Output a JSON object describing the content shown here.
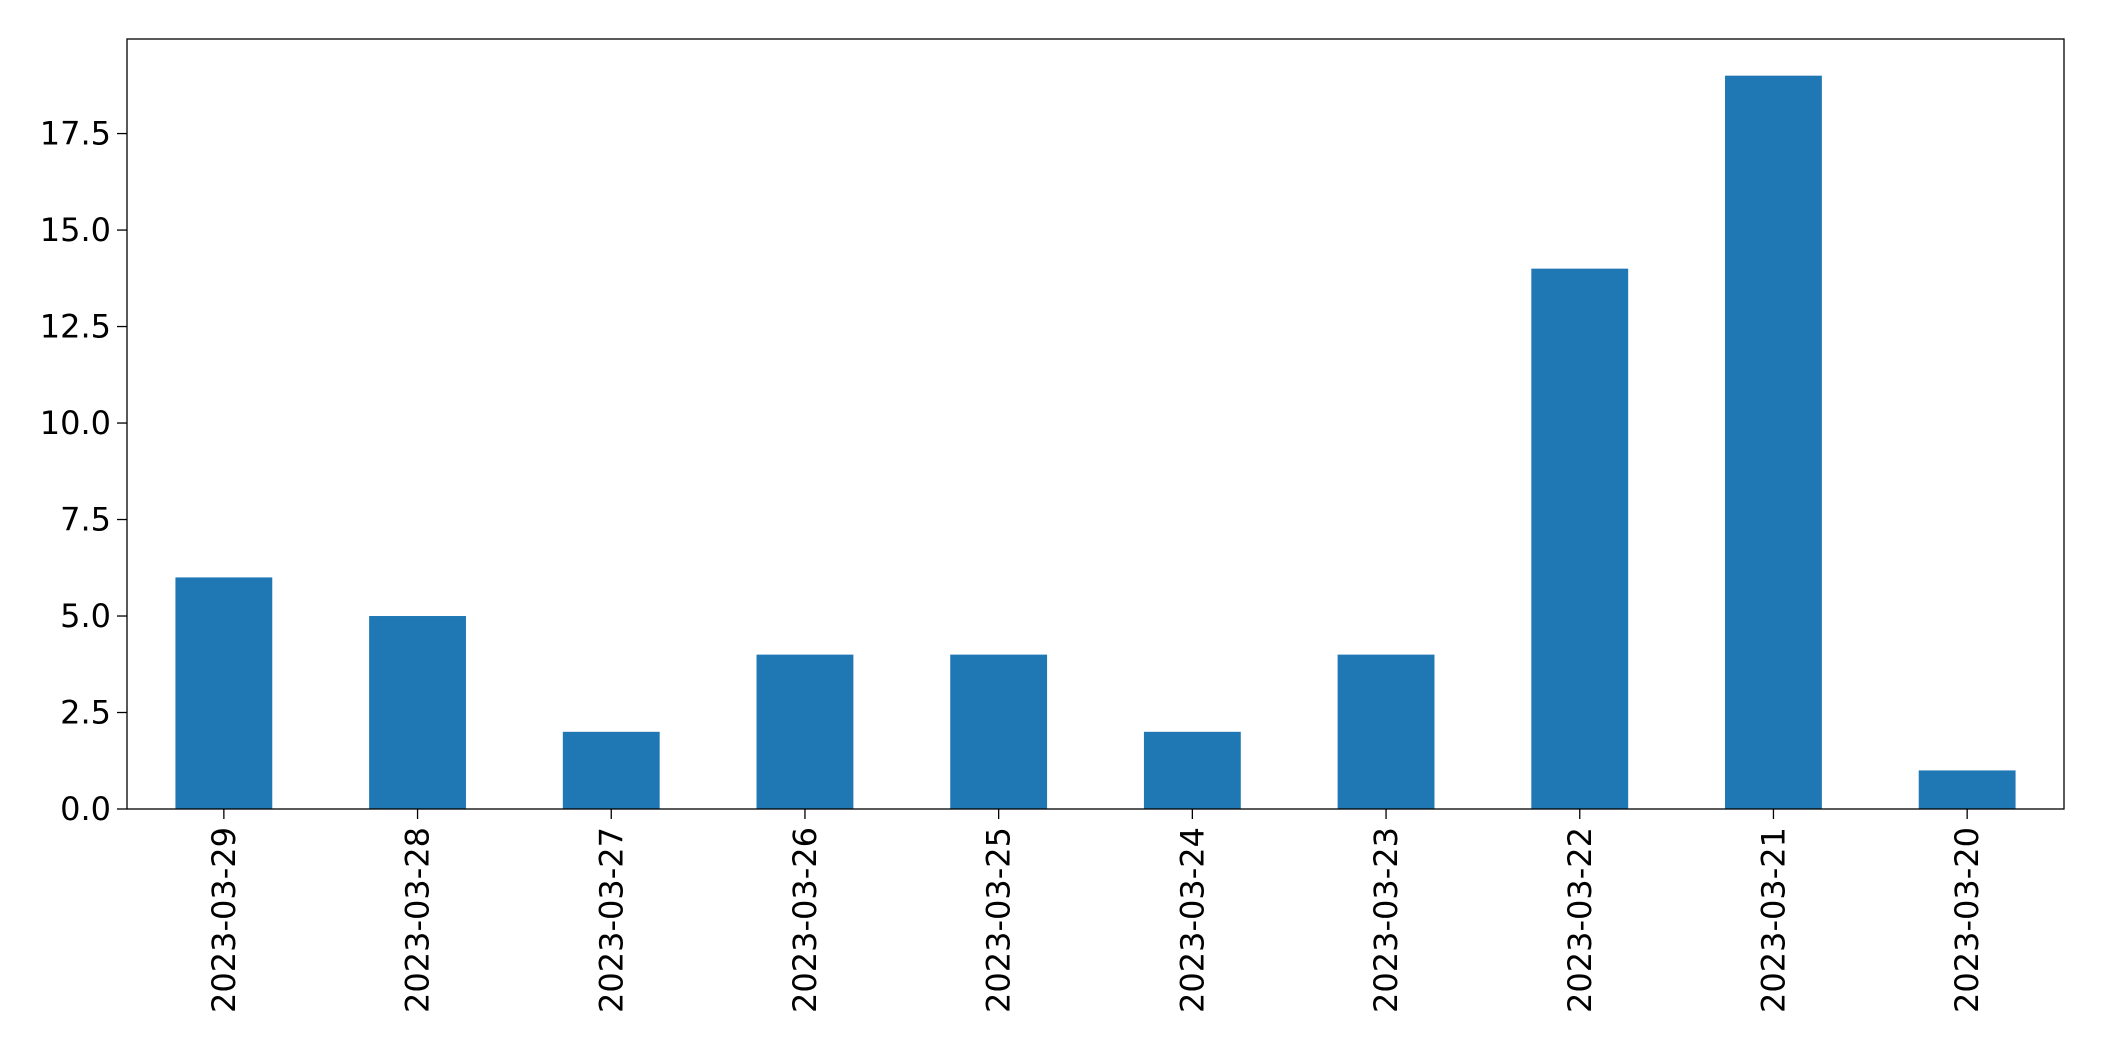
{
  "chart_data": {
    "type": "bar",
    "categories": [
      "2023-03-29",
      "2023-03-28",
      "2023-03-27",
      "2023-03-26",
      "2023-03-25",
      "2023-03-24",
      "2023-03-23",
      "2023-03-22",
      "2023-03-21",
      "2023-03-20"
    ],
    "values": [
      6,
      5,
      2,
      4,
      4,
      2,
      4,
      14,
      19,
      1
    ],
    "color": "#1f77b4",
    "ylim": [
      0,
      19.95
    ],
    "yticks": [
      {
        "value": 0,
        "label": "0.0"
      },
      2.5,
      {
        "value": 5,
        "label": "5.0"
      },
      7.5,
      {
        "value": 10,
        "label": "10.0"
      },
      12.5,
      {
        "value": 15,
        "label": "15.0"
      },
      17.5
    ],
    "grid": false
  }
}
